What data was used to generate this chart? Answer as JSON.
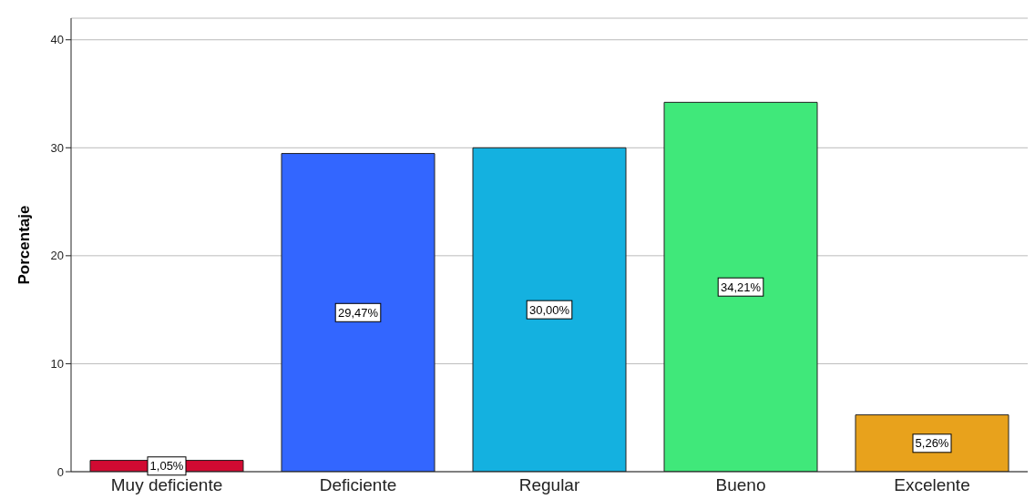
{
  "chart_data": {
    "type": "bar",
    "ylabel": "Porcentaje",
    "categories": [
      "Muy deficiente",
      "Deficiente",
      "Regular",
      "Bueno",
      "Excelente"
    ],
    "values": [
      1.05,
      29.47,
      30.0,
      34.21,
      5.26
    ],
    "colors": [
      "#d10a32",
      "#3366ff",
      "#14b1e0",
      "#40e87a",
      "#e8a21c"
    ],
    "value_labels": [
      "1,05%",
      "29,47%",
      "30,00%",
      "34,21%",
      "5,26%"
    ],
    "ylim": [
      0,
      42
    ],
    "yticks": [
      0,
      10,
      20,
      30,
      40
    ],
    "grid": "y",
    "legend": false
  }
}
